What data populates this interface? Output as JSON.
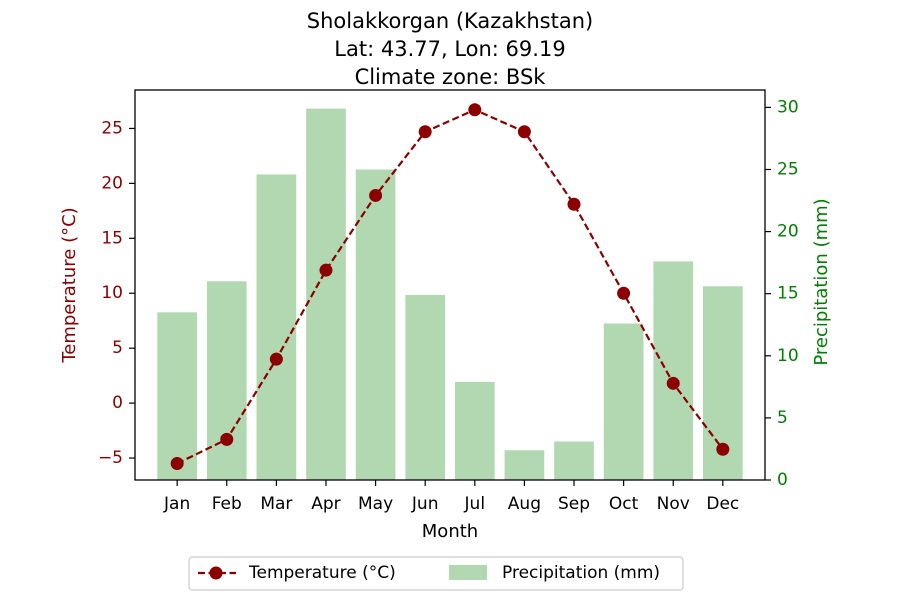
{
  "chart_data": {
    "type": "bar",
    "title_lines": [
      "Sholakkorgan (Kazakhstan)",
      "Lat: 43.77, Lon: 69.19",
      "Climate zone: BSk"
    ],
    "xlabel": "Month",
    "ylabel_left": "Temperature (°C)",
    "ylabel_right": "Precipitation (mm)",
    "categories": [
      "Jan",
      "Feb",
      "Mar",
      "Apr",
      "May",
      "Jun",
      "Jul",
      "Aug",
      "Sep",
      "Oct",
      "Nov",
      "Dec"
    ],
    "ylim_left": [
      -7,
      28.5
    ],
    "yticks_left": [
      -5,
      0,
      5,
      10,
      15,
      20,
      25
    ],
    "ylim_right": [
      0,
      31.4
    ],
    "yticks_right": [
      0,
      5,
      10,
      15,
      20,
      25,
      30
    ],
    "grid": false,
    "legend_placement": "bottom-center",
    "series": [
      {
        "name": "Temperature (°C)",
        "type": "line",
        "axis": "left",
        "color": "#8b0000",
        "values": [
          -5.5,
          -3.3,
          4.0,
          12.1,
          18.9,
          24.7,
          26.7,
          24.7,
          18.1,
          10.0,
          1.8,
          -4.2
        ]
      },
      {
        "name": "Precipitation (mm)",
        "type": "bar",
        "axis": "right",
        "color": "#b2d8b2",
        "values": [
          13.5,
          16.0,
          24.6,
          29.9,
          25.0,
          14.9,
          7.9,
          2.4,
          3.1,
          12.6,
          17.6,
          15.6
        ]
      }
    ],
    "colors": {
      "left_axis": "#8b0000",
      "right_axis": "#008000",
      "marker": "#8b0000"
    }
  }
}
